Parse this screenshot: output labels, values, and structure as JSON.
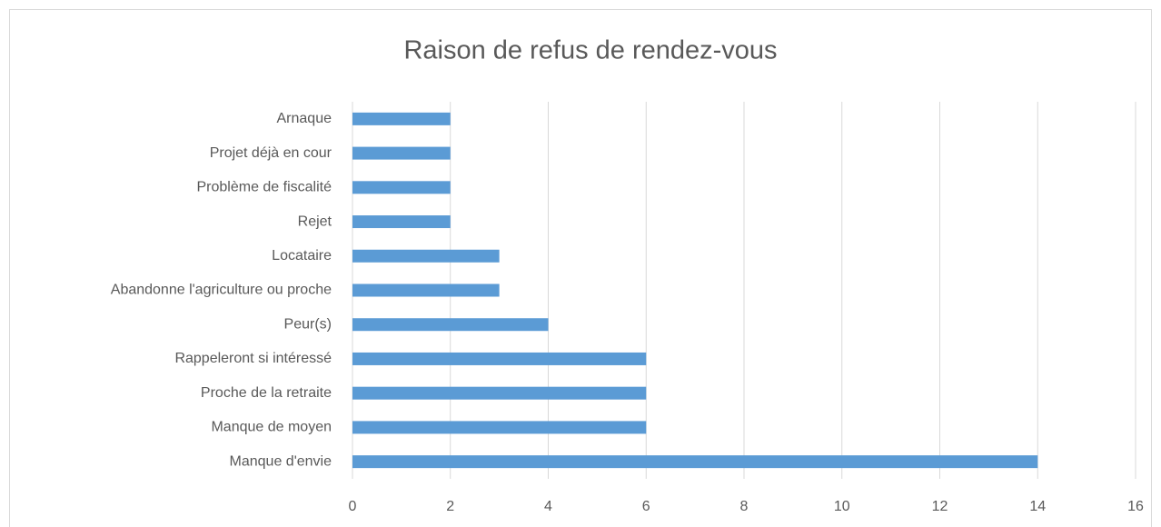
{
  "chart_data": {
    "type": "bar",
    "orientation": "horizontal",
    "title": "Raison de refus de rendez-vous",
    "categories": [
      "Arnaque",
      "Projet déjà en cour",
      "Problème de fiscalité",
      "Rejet",
      "Locataire",
      "Abandonne l'agriculture ou proche",
      "Peur(s)",
      "Rappeleront si intéressé",
      "Proche de la retraite",
      "Manque de moyen",
      "Manque d'envie"
    ],
    "values": [
      2,
      2,
      2,
      2,
      3,
      3,
      4,
      6,
      6,
      6,
      14
    ],
    "color": "#5b9bd5",
    "xlim": [
      0,
      16
    ],
    "xticks": [
      0,
      2,
      4,
      6,
      8,
      10,
      12,
      14,
      16
    ],
    "grid": true
  }
}
